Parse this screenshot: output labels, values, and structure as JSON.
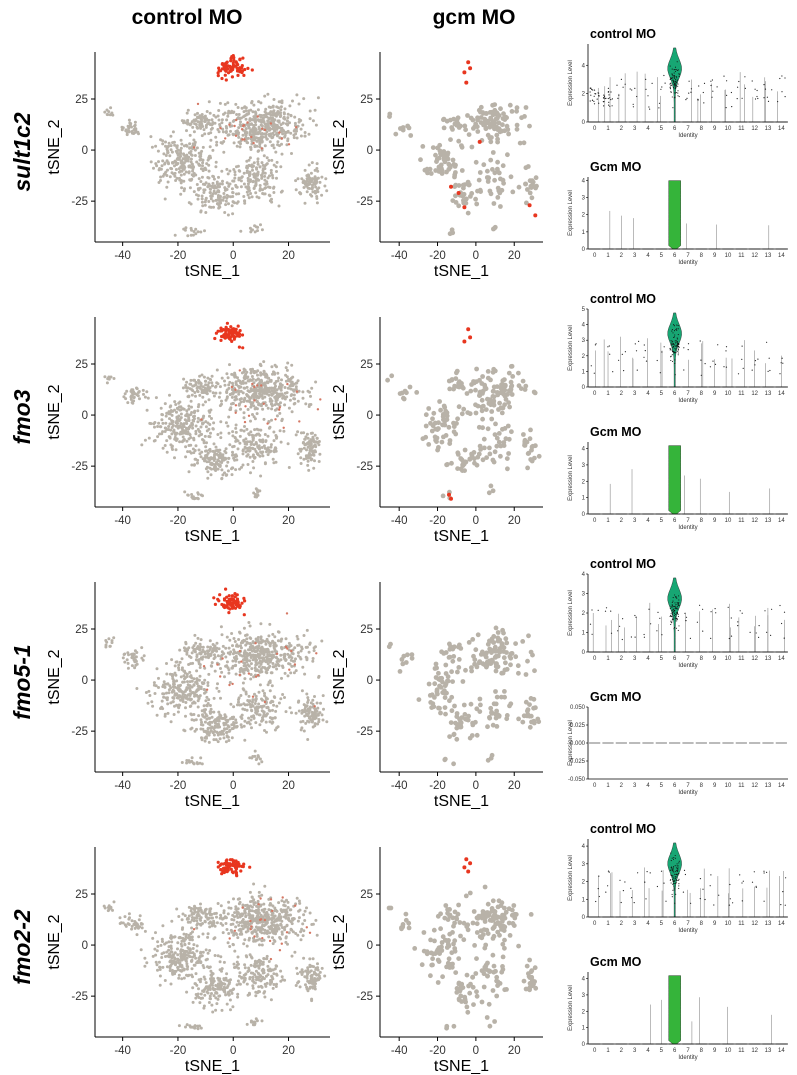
{
  "columns": {
    "left": "control MO",
    "middle": "gcm MO"
  },
  "colors": {
    "background_cell": "#b8b2a8",
    "expressing_cell": "#e8361f",
    "control_violin": "#17a673",
    "gcm_violin": "#35b43a",
    "axis": "#000000"
  },
  "rows": [
    {
      "gene": "sult1c2",
      "control_violin_title": "control MO",
      "gcm_violin_title": "Gcm MO",
      "control_ylim": [
        0,
        5.5
      ],
      "control_yticks": [
        0,
        2,
        4
      ],
      "gcm_ylim": [
        0,
        4.2
      ],
      "gcm_yticks": [
        0,
        1,
        2,
        3,
        4
      ],
      "tsne_control_highlight_cluster": [
        -1,
        40
      ],
      "tsne_gcm_highlight_points": [
        [
          -4,
          43
        ],
        [
          -3,
          40
        ],
        [
          -6,
          38
        ],
        [
          -5,
          33
        ],
        [
          -13,
          -18
        ],
        [
          -9,
          -21
        ],
        [
          -6,
          -28
        ],
        [
          28,
          -27
        ],
        [
          31,
          -32
        ],
        [
          2,
          4
        ]
      ]
    },
    {
      "gene": "fmo3",
      "control_violin_title": "control MO",
      "gcm_violin_title": "Gcm MO",
      "control_ylim": [
        0,
        5
      ],
      "control_yticks": [
        0,
        1,
        2,
        3,
        4,
        5
      ],
      "gcm_ylim": [
        0,
        4.4
      ],
      "gcm_yticks": [
        0,
        1,
        2,
        3,
        4
      ],
      "tsne_control_highlight_cluster": [
        -1,
        40
      ],
      "tsne_gcm_highlight_points": [
        [
          -4,
          42
        ],
        [
          -3,
          38
        ],
        [
          -6,
          36
        ],
        [
          -14,
          -39
        ],
        [
          -13,
          -41
        ]
      ]
    },
    {
      "gene": "fmo5-1",
      "control_violin_title": "control MO",
      "gcm_violin_title": "Gcm MO",
      "control_ylim": [
        0,
        4
      ],
      "control_yticks": [
        0,
        1,
        2,
        3,
        4
      ],
      "gcm_ylim": [
        -0.05,
        0.05
      ],
      "gcm_yticks": [
        -0.05,
        -0.025,
        0.0,
        0.025,
        0.05
      ],
      "tsne_control_highlight_cluster": [
        -1,
        38
      ],
      "tsne_gcm_highlight_points": []
    },
    {
      "gene": "fmo2-2",
      "control_violin_title": "control MO",
      "gcm_violin_title": "Gcm MO",
      "control_ylim": [
        0,
        4.4
      ],
      "control_yticks": [
        0,
        1,
        2,
        3,
        4
      ],
      "gcm_ylim": [
        0,
        4.4
      ],
      "gcm_yticks": [
        0,
        1,
        2,
        3,
        4
      ],
      "tsne_control_highlight_cluster": [
        -1,
        38
      ],
      "tsne_gcm_highlight_points": [
        [
          -5,
          42
        ],
        [
          -3,
          40
        ],
        [
          -6,
          38
        ],
        [
          -4,
          36
        ]
      ]
    }
  ],
  "chart_data": [
    {
      "type": "scatter",
      "panel": "tSNE",
      "xlabel": "tSNE_1",
      "ylabel": "tSNE_2",
      "xticks": [
        -40,
        -20,
        0,
        20
      ],
      "yticks": [
        -25,
        0,
        25
      ],
      "xlim": [
        -50,
        35
      ],
      "ylim": [
        -45,
        48
      ],
      "grid": false
    },
    {
      "type": "violin",
      "panel": "expression",
      "xlabel": "Identity",
      "ylabel": "Expression Level",
      "categories": [
        "0",
        "1",
        "2",
        "3",
        "4",
        "5",
        "6",
        "7",
        "8",
        "9",
        "10",
        "11",
        "12",
        "13",
        "14"
      ],
      "grid": false
    }
  ]
}
